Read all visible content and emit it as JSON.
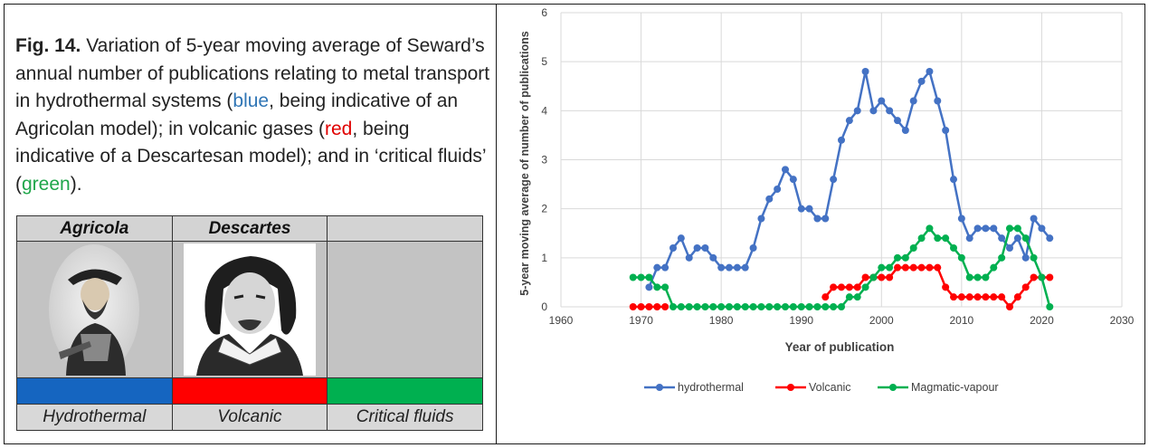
{
  "caption": {
    "fig_label": "Fig. 14.",
    "part1": " Variation of 5-year moving average of Seward’s annual number of publications relating to metal transport in hydrothermal systems (",
    "blue_word": "blue",
    "part2": ", being indicative of an Agricolan model); in volcanic gases (",
    "red_word": "red",
    "part3": ", being indicative of a Descartesan model); and in ‘critical fluids’ (",
    "green_word": "green",
    "part4": ")."
  },
  "panel": {
    "headers": [
      "Agricola",
      "Descartes",
      ""
    ],
    "colors": [
      "#1565c0",
      "#ff0000",
      "#00b050"
    ],
    "labels": [
      "Hydrothermal",
      "Volcanic",
      "Critical fluids"
    ]
  },
  "chart_data": {
    "type": "line",
    "xlabel": "Year of publication",
    "ylabel": "5-year moving average of number of publications",
    "xlim": [
      1960,
      2030
    ],
    "ylim": [
      0,
      6
    ],
    "xticks": [
      1960,
      1970,
      1980,
      1990,
      2000,
      2010,
      2020,
      2030
    ],
    "yticks": [
      0,
      1,
      2,
      3,
      4,
      5,
      6
    ],
    "grid": true,
    "legend": "bottom",
    "series": [
      {
        "name": "hydrothermal",
        "color": "#4472c4",
        "points": [
          [
            1971,
            0.4
          ],
          [
            1972,
            0.8
          ],
          [
            1973,
            0.8
          ],
          [
            1974,
            1.2
          ],
          [
            1975,
            1.4
          ],
          [
            1976,
            1.0
          ],
          [
            1977,
            1.2
          ],
          [
            1978,
            1.2
          ],
          [
            1979,
            1.0
          ],
          [
            1980,
            0.8
          ],
          [
            1981,
            0.8
          ],
          [
            1982,
            0.8
          ],
          [
            1983,
            0.8
          ],
          [
            1984,
            1.2
          ],
          [
            1985,
            1.8
          ],
          [
            1986,
            2.2
          ],
          [
            1987,
            2.4
          ],
          [
            1988,
            2.8
          ],
          [
            1989,
            2.6
          ],
          [
            1990,
            2.0
          ],
          [
            1991,
            2.0
          ],
          [
            1992,
            1.8
          ],
          [
            1993,
            1.8
          ],
          [
            1994,
            2.6
          ],
          [
            1995,
            3.4
          ],
          [
            1996,
            3.8
          ],
          [
            1997,
            4.0
          ],
          [
            1998,
            4.8
          ],
          [
            1999,
            4.0
          ],
          [
            2000,
            4.2
          ],
          [
            2001,
            4.0
          ],
          [
            2002,
            3.8
          ],
          [
            2003,
            3.6
          ],
          [
            2004,
            4.2
          ],
          [
            2005,
            4.6
          ],
          [
            2006,
            4.8
          ],
          [
            2007,
            4.2
          ],
          [
            2008,
            3.6
          ],
          [
            2009,
            2.6
          ],
          [
            2010,
            1.8
          ],
          [
            2011,
            1.4
          ],
          [
            2012,
            1.6
          ],
          [
            2013,
            1.6
          ],
          [
            2014,
            1.6
          ],
          [
            2015,
            1.4
          ],
          [
            2016,
            1.2
          ],
          [
            2017,
            1.4
          ],
          [
            2018,
            1.0
          ],
          [
            2019,
            1.8
          ],
          [
            2020,
            1.6
          ],
          [
            2021,
            1.4
          ]
        ]
      },
      {
        "name": "Volcanic",
        "color": "#ff0000",
        "points": [
          [
            1969,
            0
          ],
          [
            1970,
            0
          ],
          [
            1971,
            0
          ],
          [
            1972,
            0
          ],
          [
            1973,
            0
          ],
          [
            1993,
            0.2
          ],
          [
            1994,
            0.4
          ],
          [
            1995,
            0.4
          ],
          [
            1996,
            0.4
          ],
          [
            1997,
            0.4
          ],
          [
            1998,
            0.6
          ],
          [
            1999,
            0.6
          ],
          [
            2000,
            0.6
          ],
          [
            2001,
            0.6
          ],
          [
            2002,
            0.8
          ],
          [
            2003,
            0.8
          ],
          [
            2004,
            0.8
          ],
          [
            2005,
            0.8
          ],
          [
            2006,
            0.8
          ],
          [
            2007,
            0.8
          ],
          [
            2008,
            0.4
          ],
          [
            2009,
            0.2
          ],
          [
            2010,
            0.2
          ],
          [
            2011,
            0.2
          ],
          [
            2012,
            0.2
          ],
          [
            2013,
            0.2
          ],
          [
            2014,
            0.2
          ],
          [
            2015,
            0.2
          ],
          [
            2016,
            0
          ],
          [
            2017,
            0.2
          ],
          [
            2018,
            0.4
          ],
          [
            2019,
            0.6
          ],
          [
            2020,
            0.6
          ],
          [
            2021,
            0.6
          ]
        ]
      },
      {
        "name": "Magmatic-vapour",
        "color": "#00b050",
        "points": [
          [
            1969,
            0.6
          ],
          [
            1970,
            0.6
          ],
          [
            1971,
            0.6
          ],
          [
            1972,
            0.4
          ],
          [
            1973,
            0.4
          ],
          [
            1974,
            0
          ],
          [
            1975,
            0
          ],
          [
            1976,
            0
          ],
          [
            1977,
            0
          ],
          [
            1978,
            0
          ],
          [
            1979,
            0
          ],
          [
            1980,
            0
          ],
          [
            1981,
            0
          ],
          [
            1982,
            0
          ],
          [
            1983,
            0
          ],
          [
            1984,
            0
          ],
          [
            1985,
            0
          ],
          [
            1986,
            0
          ],
          [
            1987,
            0
          ],
          [
            1988,
            0
          ],
          [
            1989,
            0
          ],
          [
            1990,
            0
          ],
          [
            1991,
            0
          ],
          [
            1992,
            0
          ],
          [
            1993,
            0
          ],
          [
            1994,
            0
          ],
          [
            1995,
            0
          ],
          [
            1996,
            0.2
          ],
          [
            1997,
            0.2
          ],
          [
            1998,
            0.4
          ],
          [
            1999,
            0.6
          ],
          [
            2000,
            0.8
          ],
          [
            2001,
            0.8
          ],
          [
            2002,
            1.0
          ],
          [
            2003,
            1.0
          ],
          [
            2004,
            1.2
          ],
          [
            2005,
            1.4
          ],
          [
            2006,
            1.6
          ],
          [
            2007,
            1.4
          ],
          [
            2008,
            1.4
          ],
          [
            2009,
            1.2
          ],
          [
            2010,
            1.0
          ],
          [
            2011,
            0.6
          ],
          [
            2012,
            0.6
          ],
          [
            2013,
            0.6
          ],
          [
            2014,
            0.8
          ],
          [
            2015,
            1.0
          ],
          [
            2016,
            1.6
          ],
          [
            2017,
            1.6
          ],
          [
            2018,
            1.4
          ],
          [
            2019,
            1.0
          ],
          [
            2020,
            0.6
          ],
          [
            2021,
            0
          ]
        ]
      }
    ]
  }
}
